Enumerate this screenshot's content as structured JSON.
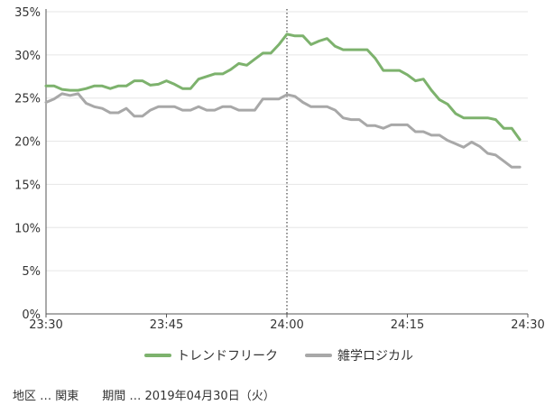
{
  "chart_data": {
    "type": "line",
    "x": [
      "23:30",
      "23:31",
      "23:32",
      "23:33",
      "23:34",
      "23:35",
      "23:36",
      "23:37",
      "23:38",
      "23:39",
      "23:40",
      "23:41",
      "23:42",
      "23:43",
      "23:44",
      "23:45",
      "23:46",
      "23:47",
      "23:48",
      "23:49",
      "23:50",
      "23:51",
      "23:52",
      "23:53",
      "23:54",
      "23:55",
      "23:56",
      "23:57",
      "23:58",
      "23:59",
      "24:00",
      "24:01",
      "24:02",
      "24:03",
      "24:04",
      "24:05",
      "24:06",
      "24:07",
      "24:08",
      "24:09",
      "24:10",
      "24:11",
      "24:12",
      "24:13",
      "24:14",
      "24:15",
      "24:16",
      "24:17",
      "24:18",
      "24:19",
      "24:20",
      "24:21",
      "24:22",
      "24:23",
      "24:24",
      "24:25",
      "24:26",
      "24:27",
      "24:28",
      "24:29"
    ],
    "x_ticks": [
      "23:30",
      "23:45",
      "24:00",
      "24:15",
      "24:30"
    ],
    "y_ticks": [
      "0%",
      "5%",
      "10%",
      "15%",
      "20%",
      "25%",
      "30%",
      "35%"
    ],
    "ylim": [
      0,
      35
    ],
    "marker_x": "24:00",
    "series": [
      {
        "name": "トレンドフリーク",
        "color": "#7db26d",
        "values": [
          26.4,
          26.4,
          26.0,
          25.9,
          25.9,
          26.1,
          26.4,
          26.4,
          26.1,
          26.4,
          26.4,
          27.0,
          27.0,
          26.5,
          26.6,
          27.0,
          26.6,
          26.1,
          26.1,
          27.2,
          27.5,
          27.8,
          27.8,
          28.3,
          29.0,
          28.8,
          29.5,
          30.2,
          30.2,
          31.2,
          32.4,
          32.2,
          32.2,
          31.2,
          31.6,
          31.9,
          31.0,
          30.6,
          30.6,
          30.6,
          30.6,
          29.6,
          28.2,
          28.2,
          28.2,
          27.7,
          27.0,
          27.2,
          25.9,
          24.8,
          24.3,
          23.2,
          22.7,
          22.7,
          22.7,
          22.7,
          22.5,
          21.5,
          21.5,
          20.2
        ]
      },
      {
        "name": "雑学ロジカル",
        "color": "#a8a8a8",
        "values": [
          24.5,
          24.9,
          25.5,
          25.3,
          25.5,
          24.4,
          24.0,
          23.8,
          23.3,
          23.3,
          23.8,
          22.9,
          22.9,
          23.6,
          24.0,
          24.0,
          24.0,
          23.6,
          23.6,
          24.0,
          23.6,
          23.6,
          24.0,
          24.0,
          23.6,
          23.6,
          23.6,
          24.9,
          24.9,
          24.9,
          25.4,
          25.2,
          24.5,
          24.0,
          24.0,
          24.0,
          23.6,
          22.7,
          22.5,
          22.5,
          21.8,
          21.8,
          21.5,
          21.9,
          21.9,
          21.9,
          21.1,
          21.1,
          20.7,
          20.7,
          20.1,
          19.7,
          19.3,
          19.9,
          19.4,
          18.6,
          18.4,
          17.7,
          17.0,
          17.0
        ]
      }
    ]
  },
  "caption": {
    "region_label": "地区 … 関東",
    "period_label": "期間 … 2019年04月30日（火）"
  }
}
